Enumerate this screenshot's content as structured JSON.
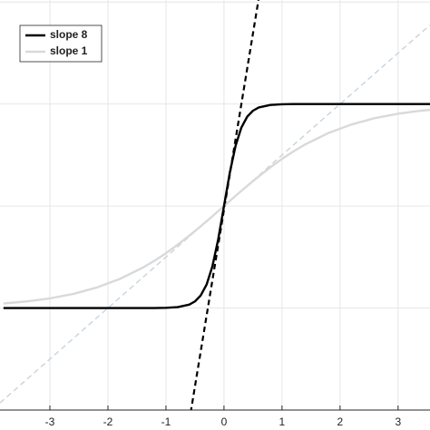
{
  "chart_data": {
    "type": "line",
    "x": [
      -3.8,
      -3.4,
      -3,
      -2.6,
      -2.2,
      -1.8,
      -1.4,
      -1.2,
      -1,
      -0.8,
      -0.6,
      -0.5,
      -0.4,
      -0.3,
      -0.2,
      -0.1,
      0,
      0.1,
      0.2,
      0.3,
      0.4,
      0.5,
      0.6,
      0.8,
      1,
      1.2,
      1.4,
      1.8,
      2.2,
      2.6,
      3,
      3.4,
      3.8
    ],
    "series": [
      {
        "name": "slope 8",
        "color": "#000000",
        "values": [
          -1,
          -1,
          -1,
          -1,
          -1,
          -1,
          -1,
          -1,
          -0.998,
          -0.991,
          -0.967,
          -0.935,
          -0.876,
          -0.77,
          -0.591,
          -0.327,
          0,
          0.327,
          0.591,
          0.77,
          0.876,
          0.935,
          0.967,
          0.991,
          0.998,
          1,
          1,
          1,
          1,
          1,
          1,
          1,
          1
        ]
      },
      {
        "name": "slope 1",
        "color": "#d9d9d9",
        "values": [
          -0.956,
          -0.935,
          -0.905,
          -0.862,
          -0.8,
          -0.716,
          -0.604,
          -0.537,
          -0.462,
          -0.38,
          -0.291,
          -0.245,
          -0.197,
          -0.149,
          -0.1,
          -0.05,
          0,
          0.05,
          0.1,
          0.149,
          0.197,
          0.245,
          0.291,
          0.38,
          0.462,
          0.537,
          0.604,
          0.716,
          0.8,
          0.862,
          0.905,
          0.935,
          0.956
        ]
      }
    ],
    "reference_lines": [
      {
        "color": "#000000",
        "x": [
          -0.625,
          0.594
        ],
        "y": [
          -2.2,
          2.02
        ]
      },
      {
        "color": "#c8d4dc",
        "x": [
          -3.86,
          3.55
        ],
        "y": [
          -1.93,
          1.775
        ]
      }
    ],
    "xlim": [
      -3.86,
      3.55
    ],
    "ylim": [
      -2,
      2.02
    ],
    "xticks": [
      -3,
      -2,
      -1,
      0,
      1,
      2,
      3
    ],
    "yticks": [
      -2,
      -1,
      0,
      1,
      2
    ],
    "grid": true,
    "legend": "upper-left"
  }
}
